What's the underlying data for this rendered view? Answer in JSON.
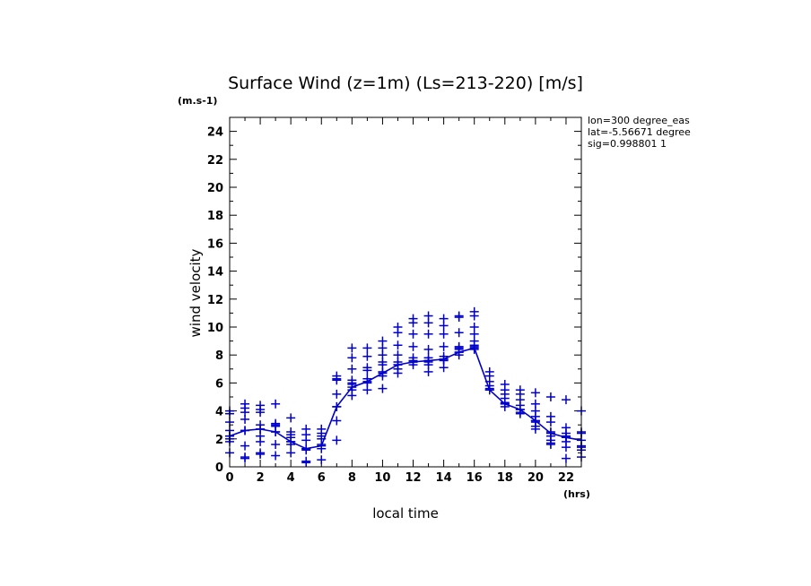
{
  "chart_data": {
    "type": "scatter",
    "title": "Surface Wind (z=1m) (Ls=213-220) [m/s]",
    "xlabel": "local time",
    "ylabel": "wind velocity",
    "x_unit": "(hrs)",
    "y_unit": "(m.s-1)",
    "xlim": [
      0,
      23
    ],
    "ylim": [
      0,
      25
    ],
    "x_ticks": [
      "0",
      "2",
      "4",
      "6",
      "8",
      "10",
      "12",
      "14",
      "16",
      "18",
      "20",
      "22"
    ],
    "y_ticks": [
      "0",
      "2",
      "4",
      "6",
      "8",
      "10",
      "12",
      "14",
      "16",
      "18",
      "20",
      "22",
      "24"
    ],
    "info": [
      "lon=300 degree_eas",
      "lat=-5.56671 degree",
      "sig=0.998801 1"
    ],
    "color": "#0000cc",
    "series": [
      {
        "style": "line",
        "x": [
          0,
          1,
          2,
          3,
          4,
          5,
          6,
          7,
          8,
          9,
          10,
          11,
          12,
          13,
          14,
          15,
          16,
          17,
          18,
          19,
          20,
          21,
          22,
          23
        ],
        "y": [
          2.2,
          2.6,
          2.7,
          2.5,
          1.8,
          1.3,
          1.5,
          4.3,
          5.7,
          6.1,
          6.7,
          7.3,
          7.5,
          7.6,
          7.7,
          8.2,
          8.5,
          5.5,
          4.5,
          4.1,
          3.3,
          2.4,
          2.1,
          1.9
        ]
      },
      {
        "style": "markers",
        "points": [
          [
            0,
            4.0
          ],
          [
            0,
            3.2
          ],
          [
            0,
            2.6
          ],
          [
            0,
            2.2
          ],
          [
            0,
            1.8
          ],
          [
            0,
            1.0
          ],
          [
            0,
            2.0
          ],
          [
            0,
            3.8
          ],
          [
            1,
            4.5
          ],
          [
            1,
            3.9
          ],
          [
            1,
            3.4
          ],
          [
            1,
            2.6
          ],
          [
            1,
            1.5
          ],
          [
            1,
            0.7
          ],
          [
            1,
            0.6
          ],
          [
            1,
            4.2
          ],
          [
            2,
            4.4
          ],
          [
            2,
            4.1
          ],
          [
            2,
            3.9
          ],
          [
            2,
            3.0
          ],
          [
            2,
            2.7
          ],
          [
            2,
            2.2
          ],
          [
            2,
            1.8
          ],
          [
            2,
            1.0
          ],
          [
            2,
            0.9
          ],
          [
            3,
            4.5
          ],
          [
            3,
            3.1
          ],
          [
            3,
            2.9
          ],
          [
            3,
            2.5
          ],
          [
            3,
            1.6
          ],
          [
            3,
            0.8
          ],
          [
            3,
            3.0
          ],
          [
            4,
            3.5
          ],
          [
            4,
            2.5
          ],
          [
            4,
            2.1
          ],
          [
            4,
            1.8
          ],
          [
            4,
            1.6
          ],
          [
            4,
            1.0
          ],
          [
            4,
            2.3
          ],
          [
            5,
            2.7
          ],
          [
            5,
            2.3
          ],
          [
            5,
            1.9
          ],
          [
            5,
            1.3
          ],
          [
            5,
            1.2
          ],
          [
            5,
            0.4
          ],
          [
            5,
            0.3
          ],
          [
            6,
            2.7
          ],
          [
            6,
            2.4
          ],
          [
            6,
            2.0
          ],
          [
            6,
            1.6
          ],
          [
            6,
            1.3
          ],
          [
            6,
            0.5
          ],
          [
            6,
            2.2
          ],
          [
            7,
            6.5
          ],
          [
            7,
            6.2
          ],
          [
            7,
            5.2
          ],
          [
            7,
            4.3
          ],
          [
            7,
            3.3
          ],
          [
            7,
            1.9
          ],
          [
            7,
            6.3
          ],
          [
            8,
            8.5
          ],
          [
            8,
            7.8
          ],
          [
            8,
            7.0
          ],
          [
            8,
            6.2
          ],
          [
            8,
            5.9
          ],
          [
            8,
            5.5
          ],
          [
            8,
            5.1
          ],
          [
            8,
            6.0
          ],
          [
            9,
            8.5
          ],
          [
            9,
            7.9
          ],
          [
            9,
            7.1
          ],
          [
            9,
            6.9
          ],
          [
            9,
            6.3
          ],
          [
            9,
            6.0
          ],
          [
            9,
            5.5
          ],
          [
            10,
            9.0
          ],
          [
            10,
            8.5
          ],
          [
            10,
            8.0
          ],
          [
            10,
            7.5
          ],
          [
            10,
            6.8
          ],
          [
            10,
            6.5
          ],
          [
            10,
            5.6
          ],
          [
            10,
            7.3
          ],
          [
            11,
            10.0
          ],
          [
            11,
            9.6
          ],
          [
            11,
            8.7
          ],
          [
            11,
            8.0
          ],
          [
            11,
            7.5
          ],
          [
            11,
            7.3
          ],
          [
            11,
            6.7
          ],
          [
            11,
            7.0
          ],
          [
            12,
            10.6
          ],
          [
            12,
            10.3
          ],
          [
            12,
            9.5
          ],
          [
            12,
            8.6
          ],
          [
            12,
            7.8
          ],
          [
            12,
            7.5
          ],
          [
            12,
            7.3
          ],
          [
            12,
            7.6
          ],
          [
            13,
            10.8
          ],
          [
            13,
            10.3
          ],
          [
            13,
            9.5
          ],
          [
            13,
            8.4
          ],
          [
            13,
            7.8
          ],
          [
            13,
            7.6
          ],
          [
            13,
            7.3
          ],
          [
            13,
            6.8
          ],
          [
            13,
            7.5
          ],
          [
            14,
            10.6
          ],
          [
            14,
            10.1
          ],
          [
            14,
            9.5
          ],
          [
            14,
            8.6
          ],
          [
            14,
            7.9
          ],
          [
            14,
            7.6
          ],
          [
            14,
            7.1
          ],
          [
            14,
            7.7
          ],
          [
            15,
            10.8
          ],
          [
            15,
            10.7
          ],
          [
            15,
            9.6
          ],
          [
            15,
            8.6
          ],
          [
            15,
            8.2
          ],
          [
            15,
            8.4
          ],
          [
            15,
            8.0
          ],
          [
            15,
            8.5
          ],
          [
            16,
            11.1
          ],
          [
            16,
            10.8
          ],
          [
            16,
            10.0
          ],
          [
            16,
            9.5
          ],
          [
            16,
            9.0
          ],
          [
            16,
            8.6
          ],
          [
            16,
            8.4
          ],
          [
            16,
            8.7
          ],
          [
            17,
            6.8
          ],
          [
            17,
            6.5
          ],
          [
            17,
            6.1
          ],
          [
            17,
            5.8
          ],
          [
            17,
            5.5
          ],
          [
            17,
            5.6
          ],
          [
            18,
            5.9
          ],
          [
            18,
            5.5
          ],
          [
            18,
            5.2
          ],
          [
            18,
            4.9
          ],
          [
            18,
            4.6
          ],
          [
            18,
            4.5
          ],
          [
            18,
            4.3
          ],
          [
            19,
            5.5
          ],
          [
            19,
            5.2
          ],
          [
            19,
            4.8
          ],
          [
            19,
            4.4
          ],
          [
            19,
            4.1
          ],
          [
            19,
            3.9
          ],
          [
            19,
            3.8
          ],
          [
            20,
            5.3
          ],
          [
            20,
            4.5
          ],
          [
            20,
            4.0
          ],
          [
            20,
            3.6
          ],
          [
            20,
            3.2
          ],
          [
            20,
            2.9
          ],
          [
            20,
            2.7
          ],
          [
            20,
            3.3
          ],
          [
            21,
            5.0
          ],
          [
            21,
            3.6
          ],
          [
            21,
            3.2
          ],
          [
            21,
            2.5
          ],
          [
            21,
            2.2
          ],
          [
            21,
            1.9
          ],
          [
            21,
            1.7
          ],
          [
            21,
            1.6
          ],
          [
            22,
            4.8
          ],
          [
            22,
            2.8
          ],
          [
            22,
            2.4
          ],
          [
            22,
            2.1
          ],
          [
            22,
            1.8
          ],
          [
            22,
            1.4
          ],
          [
            22,
            0.6
          ],
          [
            22,
            2.2
          ],
          [
            23,
            4.0
          ],
          [
            23,
            2.5
          ],
          [
            23,
            2.4
          ],
          [
            23,
            1.4
          ],
          [
            23,
            1.2
          ],
          [
            23,
            0.7
          ],
          [
            23,
            1.5
          ]
        ]
      }
    ]
  }
}
